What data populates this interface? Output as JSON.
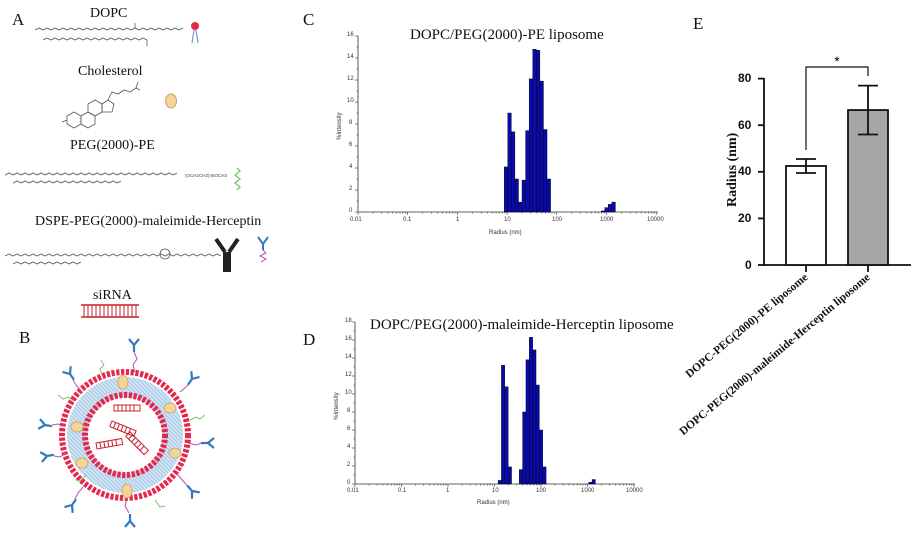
{
  "panels": {
    "A": {
      "letter": "A",
      "molecules": [
        {
          "name": "DOPC",
          "icon": "phospholipid-icon"
        },
        {
          "name": "Cholesterol",
          "icon": "cholesterol-ellipse-icon"
        },
        {
          "name": "PEG(2000)-PE",
          "icon": "peg-chain-icon",
          "formula_fragment": "(OCH2CH2)45OCH3"
        },
        {
          "name": "DSPE-PEG(2000)-maleimide-Herceptin",
          "icon": "antibody-icon"
        },
        {
          "name": "siRNA",
          "icon": "sirna-ladder-icon"
        }
      ]
    },
    "B": {
      "letter": "B",
      "description": "Liposome schematic: bilayer of DOPC (red heads, blue tails), cholesterol (tan ellipses), PEG chains (green), Herceptin antibodies (blue) on PEG-maleimide linkers (purple), siRNA duplexes (red) in aqueous core"
    },
    "C": {
      "letter": "C",
      "title": "DOPC/PEG(2000)-PE liposome",
      "ylabel": "%Intensity",
      "xlabel": "Radius (nm)",
      "yticks": [
        "0",
        "2",
        "4",
        "6",
        "8",
        "10",
        "12",
        "14",
        "16"
      ],
      "xticks": [
        "0.01",
        "0.1",
        "1",
        "10",
        "100",
        "1000",
        "10000"
      ]
    },
    "D": {
      "letter": "D",
      "title": "DOPC/PEG(2000)-maleimide-Herceptin liposome",
      "ylabel": "%Intensity",
      "xlabel": "Radius (nm)",
      "yticks": [
        "0",
        "2",
        "4",
        "6",
        "8",
        "10",
        "12",
        "14",
        "16",
        "18"
      ],
      "xticks": [
        "0.01",
        "0.1",
        "1",
        "10",
        "100",
        "1000",
        "10000"
      ]
    },
    "E": {
      "letter": "E",
      "ylabel": "Radius (nm)",
      "yticks": [
        "0",
        "20",
        "40",
        "60",
        "80"
      ],
      "significance": "*",
      "categories": [
        "DOPC-PEG(2000)-PE liposome",
        "DOPC-PEG(2000)-maleimide-Herceptin liposome"
      ]
    }
  },
  "colors": {
    "histogram_bar": "#0a0aa8",
    "bar_outline": "#000000",
    "bar_E_1": "#ffffff",
    "bar_E_2": "#a6a6a8",
    "lipid_head": "#e8254a",
    "lipid_tail": "#a9cbe8",
    "cholesterol": "#f4d49a",
    "antibody": "#2f7bbf",
    "linker": "#b54fb5",
    "peg": "#7ac36a",
    "sirna": "#c8202a"
  },
  "chart_data": [
    {
      "panel": "C",
      "type": "bar",
      "title": "DOPC/PEG(2000)-PE liposome",
      "xlabel": "Radius (nm)",
      "ylabel": "%Intensity",
      "xscale": "log",
      "xlim": [
        0.01,
        10000
      ],
      "ylim": [
        0,
        16
      ],
      "grid": false,
      "x": [
        9.5,
        11.2,
        13.2,
        15.6,
        18.4,
        21.7,
        25.6,
        30.2,
        35.6,
        42.0,
        49.6,
        58.5,
        69.0,
        81.4,
        850,
        1000,
        1180,
        1390,
        1640
      ],
      "values": [
        4.1,
        9.0,
        7.3,
        3.0,
        0.9,
        2.9,
        7.4,
        12.1,
        14.8,
        14.7,
        11.9,
        7.5,
        3.0,
        0.0,
        0.1,
        0.4,
        0.7,
        0.9,
        0.0
      ]
    },
    {
      "panel": "D",
      "type": "bar",
      "title": "DOPC/PEG(2000)-maleimide-Herceptin liposome",
      "xlabel": "Radius (nm)",
      "ylabel": "%Intensity",
      "xscale": "log",
      "xlim": [
        0.01,
        10000
      ],
      "ylim": [
        0,
        18
      ],
      "grid": false,
      "x": [
        13.0,
        15.3,
        18.1,
        21.4,
        37.0,
        43.7,
        51.6,
        60.9,
        71.9,
        84.9,
        100.2,
        118.3,
        139.6,
        1150,
        1360
      ],
      "values": [
        0.4,
        13.2,
        10.8,
        1.9,
        1.6,
        8.0,
        13.8,
        16.3,
        14.9,
        11.0,
        6.0,
        1.9,
        0.0,
        0.2,
        0.5
      ]
    },
    {
      "panel": "E",
      "type": "bar",
      "title": "",
      "xlabel": "",
      "ylabel": "Radius (nm)",
      "ylim": [
        0,
        80
      ],
      "grid": false,
      "categories": [
        "DOPC-PEG(2000)-PE liposome",
        "DOPC-PEG(2000)-maleimide-Herceptin liposome"
      ],
      "values": [
        42.5,
        66.5
      ],
      "error": [
        3.0,
        10.5
      ],
      "annotations": [
        {
          "type": "significance",
          "label": "*",
          "between": [
            0,
            1
          ]
        }
      ]
    }
  ]
}
